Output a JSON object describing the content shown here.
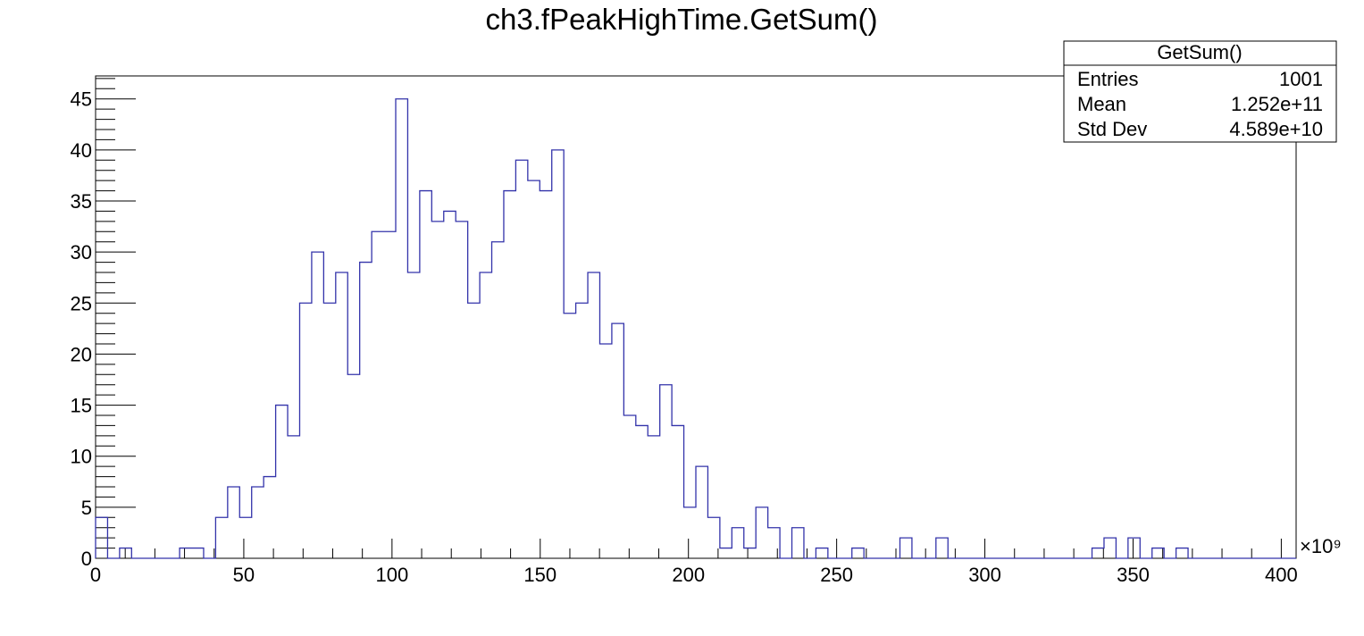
{
  "chart_data": {
    "type": "bar",
    "title": "ch3.fPeakHighTime.GetSum()",
    "xlabel": "",
    "ylabel": "",
    "x_multiplier_label": "×10⁹",
    "xlim": [
      0,
      405
    ],
    "ylim": [
      0,
      47.25
    ],
    "x_ticks": [
      0,
      50,
      100,
      150,
      200,
      250,
      300,
      350,
      400
    ],
    "y_ticks": [
      0,
      5,
      10,
      15,
      20,
      25,
      30,
      35,
      40,
      45
    ],
    "bin_start": 0,
    "bin_width": 4.05,
    "values": [
      4,
      0,
      1,
      0,
      0,
      0,
      0,
      1,
      1,
      0,
      4,
      7,
      4,
      7,
      8,
      15,
      12,
      25,
      30,
      25,
      28,
      18,
      29,
      32,
      32,
      45,
      28,
      36,
      33,
      34,
      33,
      25,
      28,
      31,
      36,
      39,
      37,
      36,
      40,
      24,
      25,
      28,
      21,
      23,
      14,
      13,
      12,
      17,
      13,
      5,
      9,
      4,
      1,
      3,
      1,
      5,
      3,
      0,
      3,
      0,
      1,
      0,
      0,
      1,
      0,
      0,
      0,
      2,
      0,
      0,
      2,
      0,
      0,
      0,
      0,
      0,
      0,
      0,
      0,
      0,
      0,
      0,
      0,
      1,
      2,
      0,
      2,
      0,
      1,
      0,
      1,
      0,
      0,
      0,
      0,
      0,
      0,
      0,
      0,
      0
    ],
    "line_color": "#3333aa",
    "stats": {
      "title": "GetSum()",
      "rows": [
        {
          "label": "Entries",
          "value": "1001"
        },
        {
          "label": "Mean",
          "value": "1.252e+11"
        },
        {
          "label": "Std Dev",
          "value": "4.589e+10"
        }
      ]
    }
  }
}
